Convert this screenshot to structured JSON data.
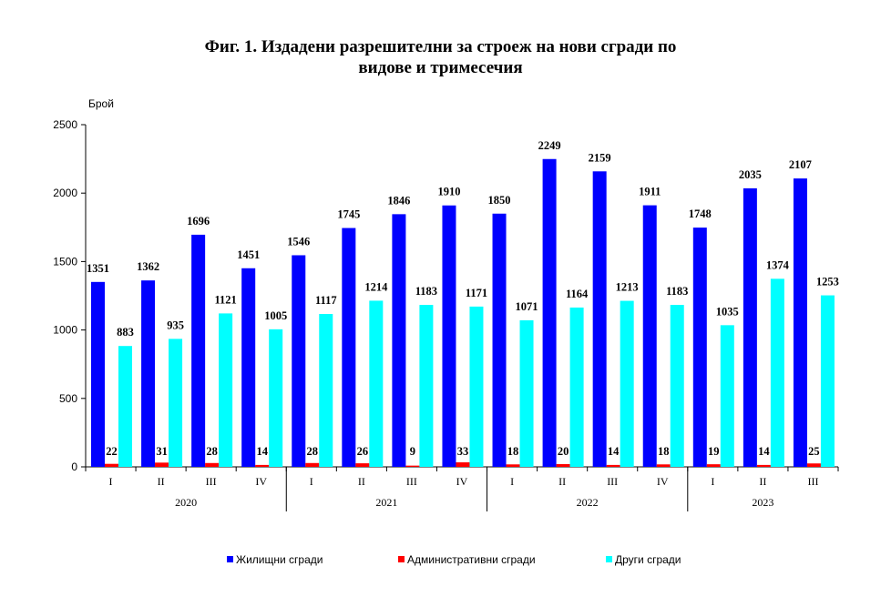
{
  "chart_data": {
    "type": "bar",
    "title_line1": "Фиг. 1. Издадени разрешителни за строеж на нови сгради по",
    "title_line2": "видове и тримесечия",
    "ylabel": "Брой",
    "ylim": [
      0,
      2500
    ],
    "yticks": [
      "0",
      "500",
      "1000",
      "1500",
      "2000",
      "2500"
    ],
    "ytick_values": [
      0,
      500,
      1000,
      1500,
      2000,
      2500
    ],
    "categories": [
      "I",
      "II",
      "III",
      "IV",
      "I",
      "II",
      "III",
      "IV",
      "I",
      "II",
      "III",
      "IV",
      "I",
      "II",
      "III"
    ],
    "years": [
      {
        "label": "2020",
        "count": 4
      },
      {
        "label": "2021",
        "count": 4
      },
      {
        "label": "2022",
        "count": 4
      },
      {
        "label": "2023",
        "count": 3
      }
    ],
    "legend_position": "bottom",
    "grid": false,
    "series": [
      {
        "name": "Жилищни сгради",
        "color": "#0000ff",
        "values": [
          1351,
          1362,
          1696,
          1451,
          1546,
          1745,
          1846,
          1910,
          1850,
          2249,
          2159,
          1911,
          1748,
          2035,
          2107
        ]
      },
      {
        "name": "Административни сгради",
        "color": "#ff0000",
        "values": [
          22,
          31,
          28,
          14,
          28,
          26,
          9,
          33,
          18,
          20,
          14,
          18,
          19,
          14,
          25
        ]
      },
      {
        "name": "Други сгради",
        "color": "#00ffff",
        "values": [
          883,
          935,
          1121,
          1005,
          1117,
          1214,
          1183,
          1171,
          1071,
          1164,
          1213,
          1183,
          1035,
          1374,
          1253
        ]
      }
    ]
  }
}
